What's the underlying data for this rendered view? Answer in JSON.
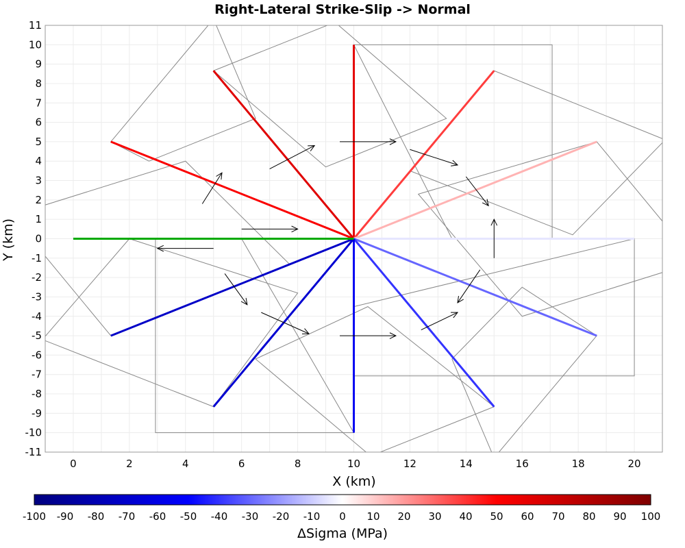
{
  "chart_data": {
    "type": "line",
    "title": "Right-Lateral Strike-Slip -> Normal",
    "xlabel": "X (km)",
    "ylabel": "Y (km)",
    "xlim": [
      -1,
      21
    ],
    "ylim": [
      -11,
      11
    ],
    "grid": true,
    "x_ticks": [
      0,
      2,
      4,
      6,
      8,
      10,
      12,
      14,
      16,
      18,
      20
    ],
    "y_ticks": [
      11,
      10,
      9,
      8,
      7,
      6,
      5,
      4,
      3,
      2,
      1,
      0,
      -1,
      -2,
      -3,
      -4,
      -5,
      -6,
      -7,
      -8,
      -9,
      -10,
      -11
    ],
    "origin": [
      10,
      0
    ],
    "rupture_trace": {
      "color": "#00aa00",
      "x": [
        0,
        10
      ],
      "y": [
        0,
        0
      ]
    },
    "fault_traces": [
      {
        "end": [
          1.34,
          5.0
        ],
        "dsigma": 52
      },
      {
        "end": [
          5.0,
          8.66
        ],
        "dsigma": 62
      },
      {
        "end": [
          10.0,
          10.0
        ],
        "dsigma": 60
      },
      {
        "end": [
          15.0,
          8.66
        ],
        "dsigma": 38
      },
      {
        "end": [
          18.66,
          5.0
        ],
        "dsigma": 15
      },
      {
        "end": [
          20.0,
          0.0
        ],
        "dsigma": -5
      },
      {
        "end": [
          18.66,
          -5.0
        ],
        "dsigma": -30
      },
      {
        "end": [
          15.0,
          -8.66
        ],
        "dsigma": -40
      },
      {
        "end": [
          10.0,
          -10.0
        ],
        "dsigma": -55
      },
      {
        "end": [
          5.0,
          -8.66
        ],
        "dsigma": -68
      },
      {
        "end": [
          1.34,
          -5.0
        ],
        "dsigma": -72
      }
    ],
    "fault_planes": [
      [
        [
          1.34,
          5.0
        ],
        [
          5.0,
          11.33
        ],
        [
          6.5,
          6.2
        ],
        [
          2.7,
          4.0
        ]
      ],
      [
        [
          5.0,
          8.66
        ],
        [
          9.33,
          11.16
        ],
        [
          13.3,
          6.2
        ],
        [
          9.0,
          3.7
        ]
      ],
      [
        [
          10.0,
          10.0
        ],
        [
          17.07,
          10.0
        ],
        [
          17.07,
          0.0
        ],
        [
          13.5,
          0.0
        ]
      ],
      [
        [
          15.0,
          8.66
        ],
        [
          21.1,
          5.1
        ],
        [
          17.8,
          0.2
        ],
        [
          12.0,
          3.5
        ]
      ],
      [
        [
          18.66,
          5.0
        ],
        [
          22.2,
          -1.2
        ],
        [
          16.0,
          -4.0
        ],
        [
          12.3,
          2.3
        ]
      ],
      [
        [
          20.0,
          0.0
        ],
        [
          20.0,
          -7.07
        ],
        [
          10.0,
          -7.07
        ],
        [
          10.0,
          -3.5
        ]
      ],
      [
        [
          18.66,
          -5.0
        ],
        [
          15.0,
          -11.3
        ],
        [
          13.5,
          -6.2
        ],
        [
          16.0,
          -2.5
        ]
      ],
      [
        [
          15.0,
          -8.66
        ],
        [
          10.6,
          -11.2
        ],
        [
          6.5,
          -6.2
        ],
        [
          10.5,
          -3.5
        ]
      ],
      [
        [
          10.0,
          -10.0
        ],
        [
          2.93,
          -10.0
        ],
        [
          2.93,
          0.0
        ],
        [
          6.0,
          0.0
        ]
      ],
      [
        [
          5.0,
          -8.66
        ],
        [
          -1.1,
          -5.2
        ],
        [
          2.0,
          0.0
        ],
        [
          8.0,
          -2.8
        ]
      ],
      [
        [
          1.34,
          -5.0
        ],
        [
          -2.2,
          1.2
        ],
        [
          4.0,
          4.0
        ],
        [
          7.7,
          -1.3
        ]
      ]
    ],
    "slip_arrows": [
      [
        [
          6.0,
          0.5
        ],
        [
          8.0,
          0.5
        ]
      ],
      [
        [
          5.0,
          -0.5
        ],
        [
          3.0,
          -0.5
        ]
      ],
      [
        [
          4.6,
          1.8
        ],
        [
          5.3,
          3.4
        ]
      ],
      [
        [
          5.4,
          -1.8
        ],
        [
          6.2,
          -3.4
        ]
      ],
      [
        [
          7.0,
          3.6
        ],
        [
          8.6,
          4.8
        ]
      ],
      [
        [
          6.7,
          -3.8
        ],
        [
          8.4,
          -4.9
        ]
      ],
      [
        [
          9.5,
          5.0
        ],
        [
          11.5,
          5.0
        ]
      ],
      [
        [
          9.5,
          -5.0
        ],
        [
          11.5,
          -5.0
        ]
      ],
      [
        [
          12.0,
          4.6
        ],
        [
          13.7,
          3.8
        ]
      ],
      [
        [
          12.4,
          -4.7
        ],
        [
          13.7,
          -3.8
        ]
      ],
      [
        [
          14.0,
          3.2
        ],
        [
          14.8,
          1.7
        ]
      ],
      [
        [
          14.5,
          -1.6
        ],
        [
          13.7,
          -3.3
        ]
      ],
      [
        [
          15.0,
          -1.0
        ],
        [
          15.0,
          1.0
        ]
      ]
    ],
    "colorbar": {
      "label": "ΔSigma (MPa)",
      "min": -100,
      "max": 100,
      "ticks": [
        -100,
        -90,
        -80,
        -70,
        -60,
        -50,
        -40,
        -30,
        -20,
        -10,
        0,
        10,
        20,
        30,
        40,
        50,
        60,
        70,
        80,
        90,
        100
      ],
      "colors": [
        "#00007f",
        "#0000ff",
        "#ffffff",
        "#ff0000",
        "#7f0000"
      ]
    }
  }
}
